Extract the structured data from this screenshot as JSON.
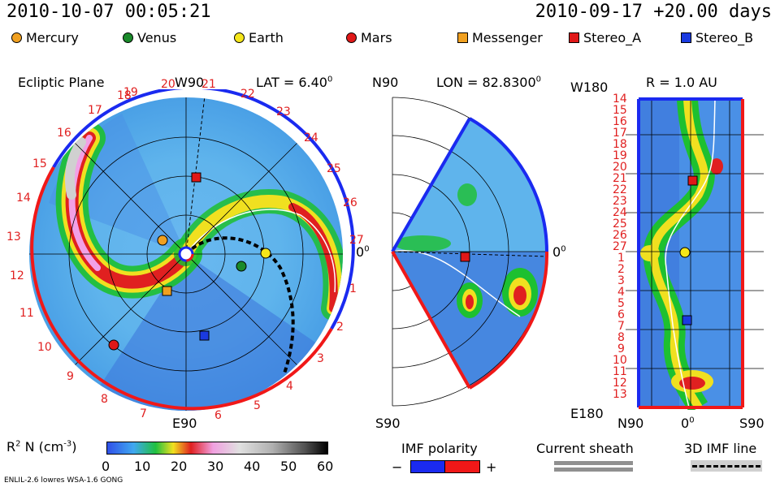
{
  "header": {
    "datetime": "2010-10-07 00:05:21",
    "reference": "2010-09-17 +20.00 days"
  },
  "legend": {
    "items": [
      {
        "label": "Mercury",
        "shape": "circle",
        "color": "#f0a020"
      },
      {
        "label": "Venus",
        "shape": "circle",
        "color": "#1a8a2a"
      },
      {
        "label": "Earth",
        "shape": "circle",
        "color": "#f5e61a"
      },
      {
        "label": "Mars",
        "shape": "circle",
        "color": "#e01818"
      },
      {
        "label": "Messenger",
        "shape": "square",
        "color": "#f0a020"
      },
      {
        "label": "Stereo_A",
        "shape": "square",
        "color": "#e01818"
      },
      {
        "label": "Stereo_B",
        "shape": "square",
        "color": "#1a3ae0"
      }
    ]
  },
  "panels": {
    "ecliptic": {
      "title": "Ecliptic Plane",
      "north_label": "W90",
      "south_label": "E90",
      "lat_label": "LAT = 6.40",
      "lat_unit": "0",
      "zero_label": "0",
      "zero_unit": "0",
      "carrington_ticks": [
        "19",
        "20",
        "21",
        "22",
        "23",
        "24",
        "25",
        "26",
        "27",
        "1",
        "2",
        "3",
        "4",
        "5",
        "6",
        "7",
        "8",
        "9",
        "10",
        "11",
        "12",
        "13",
        "14",
        "15",
        "16",
        "17",
        "18"
      ]
    },
    "meridional": {
      "north_label": "N90",
      "south_label": "S90",
      "lon_label": "LON = 82.8300",
      "lon_unit": "0",
      "zero_label": "0",
      "zero_unit": "0"
    },
    "radial": {
      "top_left_label": "W180",
      "bottom_left_label": "E180",
      "r_label": "R = 1.0 AU",
      "bottom_labels": [
        "N90",
        "0",
        "S90"
      ],
      "zero_unit": "0",
      "rotation_ticks": [
        "14",
        "15",
        "16",
        "17",
        "18",
        "19",
        "20",
        "21",
        "22",
        "23",
        "24",
        "25",
        "26",
        "27",
        "1",
        "2",
        "3",
        "4",
        "5",
        "6",
        "7",
        "8",
        "9",
        "10",
        "11",
        "12",
        "13"
      ]
    }
  },
  "colorbar": {
    "label": "R",
    "label_sup": "2",
    "label_rest": " N (cm",
    "label_exp": "-3",
    "label_close": ")",
    "ticks": [
      "0",
      "10",
      "20",
      "30",
      "40",
      "50",
      "60"
    ],
    "min": 0,
    "max": 60
  },
  "imf_legend": {
    "title": "IMF polarity",
    "minus": "−",
    "plus": "+",
    "negative_color": "#1a2af0",
    "positive_color": "#f01818"
  },
  "sheath_legend": {
    "title": "Current sheath"
  },
  "imf3d_legend": {
    "title": "3D IMF line"
  },
  "footer": {
    "model": "ENLIL-2.6 lowres WSA-1.6 GONG"
  },
  "colors": {
    "accent_red": "#e02020",
    "background_plasma": "#4fb0ea"
  }
}
